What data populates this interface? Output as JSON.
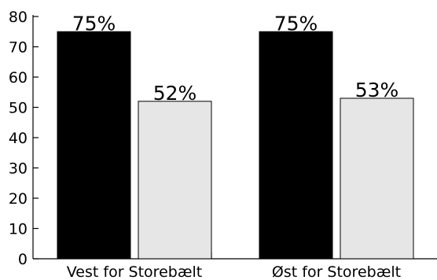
{
  "chart_data": {
    "type": "bar",
    "categories": [
      "Vest for Storebælt",
      "Øst for Storebælt"
    ],
    "series": [
      {
        "values": [
          75,
          75
        ],
        "color": "#000000"
      },
      {
        "values": [
          52,
          53
        ],
        "color": "#e6e6e6"
      }
    ],
    "data_labels": [
      [
        "75%",
        "75%"
      ],
      [
        "52%",
        "53%"
      ]
    ],
    "ylim": [
      0,
      80
    ],
    "yticks": [
      0,
      10,
      20,
      30,
      40,
      50,
      60,
      70,
      80
    ],
    "grid": false,
    "title": "",
    "xlabel": "",
    "ylabel": ""
  }
}
